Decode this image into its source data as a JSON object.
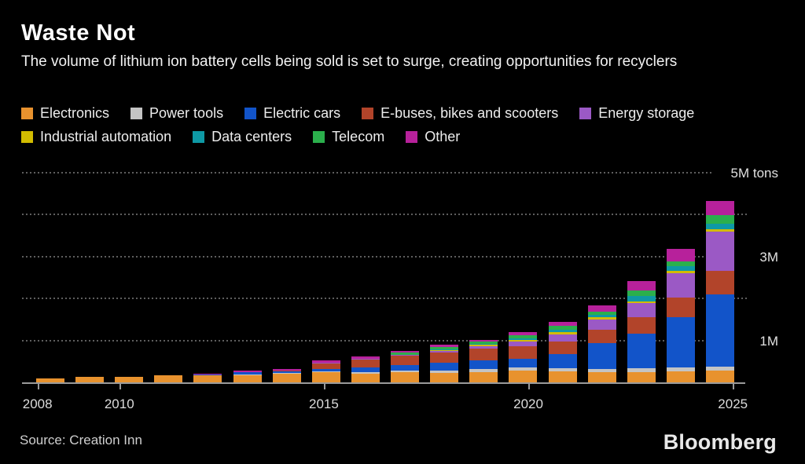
{
  "header": {
    "title": "Waste Not",
    "subtitle": "The volume of lithium ion battery cells being sold is set to surge, creating opportunities for recyclers"
  },
  "legend": {
    "rows": [
      [
        {
          "label": "Electronics",
          "color": "#E8922E"
        },
        {
          "label": "Power tools",
          "color": "#C4C4C4"
        },
        {
          "label": "Electric cars",
          "color": "#1254C9"
        },
        {
          "label": "E-buses, bikes and scooters",
          "color": "#B2442A"
        },
        {
          "label": "Energy storage",
          "color": "#9B59C5"
        }
      ],
      [
        {
          "label": "Industrial automation",
          "color": "#D2BC00"
        },
        {
          "label": "Data centers",
          "color": "#0E99A5"
        },
        {
          "label": "Telecom",
          "color": "#2BAF4C"
        },
        {
          "label": "Other",
          "color": "#B7219B"
        }
      ]
    ]
  },
  "chart_data": {
    "type": "bar",
    "stacked": true,
    "unit": "M tons",
    "title": "Waste Not",
    "ylim": [
      0,
      5.3
    ],
    "grid": "dotted-horizontal",
    "legend_position": "top",
    "categories": [
      2008,
      2009,
      2010,
      2011,
      2012,
      2013,
      2014,
      2015,
      2016,
      2017,
      2018,
      2019,
      2020,
      2021,
      2022,
      2023,
      2024,
      2025
    ],
    "series": [
      {
        "name": "Electronics",
        "color": "#E8922E",
        "values": [
          0.09,
          0.125,
          0.14,
          0.17,
          0.17,
          0.19,
          0.21,
          0.24,
          0.2,
          0.24,
          0.23,
          0.25,
          0.28,
          0.27,
          0.25,
          0.25,
          0.27,
          0.29
        ]
      },
      {
        "name": "Power tools",
        "color": "#C4C4C4",
        "values": [
          0,
          0,
          0,
          0,
          0,
          0.005,
          0.01,
          0.02,
          0.05,
          0.05,
          0.05,
          0.06,
          0.07,
          0.07,
          0.06,
          0.09,
          0.08,
          0.08
        ]
      },
      {
        "name": "Electric cars",
        "color": "#1254C9",
        "values": [
          0,
          0,
          0,
          0,
          0.035,
          0.05,
          0.06,
          0.06,
          0.11,
          0.125,
          0.19,
          0.21,
          0.22,
          0.34,
          0.62,
          0.83,
          1.21,
          1.73
        ]
      },
      {
        "name": "E-buses, bikes and scooters",
        "color": "#B2442A",
        "values": [
          0,
          0,
          0,
          0,
          0,
          0,
          0.01,
          0.125,
          0.175,
          0.22,
          0.24,
          0.29,
          0.3,
          0.3,
          0.32,
          0.39,
          0.47,
          0.56
        ]
      },
      {
        "name": "Energy storage",
        "color": "#9B59C5",
        "values": [
          0,
          0,
          0,
          0,
          0,
          0,
          0,
          0.03,
          0.03,
          0.02,
          0.03,
          0.05,
          0.11,
          0.17,
          0.25,
          0.33,
          0.58,
          0.94
        ]
      },
      {
        "name": "Industrial automation",
        "color": "#D2BC00",
        "values": [
          0,
          0,
          0,
          0,
          0,
          0,
          0,
          0,
          0,
          0,
          0.02,
          0.03,
          0.03,
          0.05,
          0.05,
          0.03,
          0.05,
          0.06
        ]
      },
      {
        "name": "Data centers",
        "color": "#0E99A5",
        "values": [
          0,
          0,
          0,
          0,
          0,
          0,
          0,
          0,
          0,
          0,
          0.03,
          0.03,
          0.04,
          0.06,
          0.06,
          0.14,
          0.12,
          0.13
        ]
      },
      {
        "name": "Telecom",
        "color": "#2BAF4C",
        "values": [
          0,
          0,
          0,
          0,
          0,
          0,
          0,
          0,
          0,
          0.055,
          0.05,
          0.045,
          0.07,
          0.09,
          0.08,
          0.14,
          0.11,
          0.19
        ]
      },
      {
        "name": "Other",
        "color": "#B7219B",
        "values": [
          0,
          0,
          0,
          0,
          0.005,
          0.035,
          0.03,
          0.04,
          0.045,
          0.045,
          0.05,
          0.04,
          0.07,
          0.1,
          0.14,
          0.22,
          0.29,
          0.35
        ]
      }
    ],
    "y_tick_labels": [
      {
        "value": 5,
        "label": "5M tons"
      },
      {
        "value": 3,
        "label": "3M"
      },
      {
        "value": 1,
        "label": "1M"
      }
    ],
    "gridline_values": [
      1,
      2,
      3,
      4,
      5
    ],
    "x_tick_years": [
      2008,
      2010,
      2015,
      2020,
      2025
    ]
  },
  "footer": {
    "source": "Source: Creation Inn",
    "logo": "Bloomberg"
  }
}
